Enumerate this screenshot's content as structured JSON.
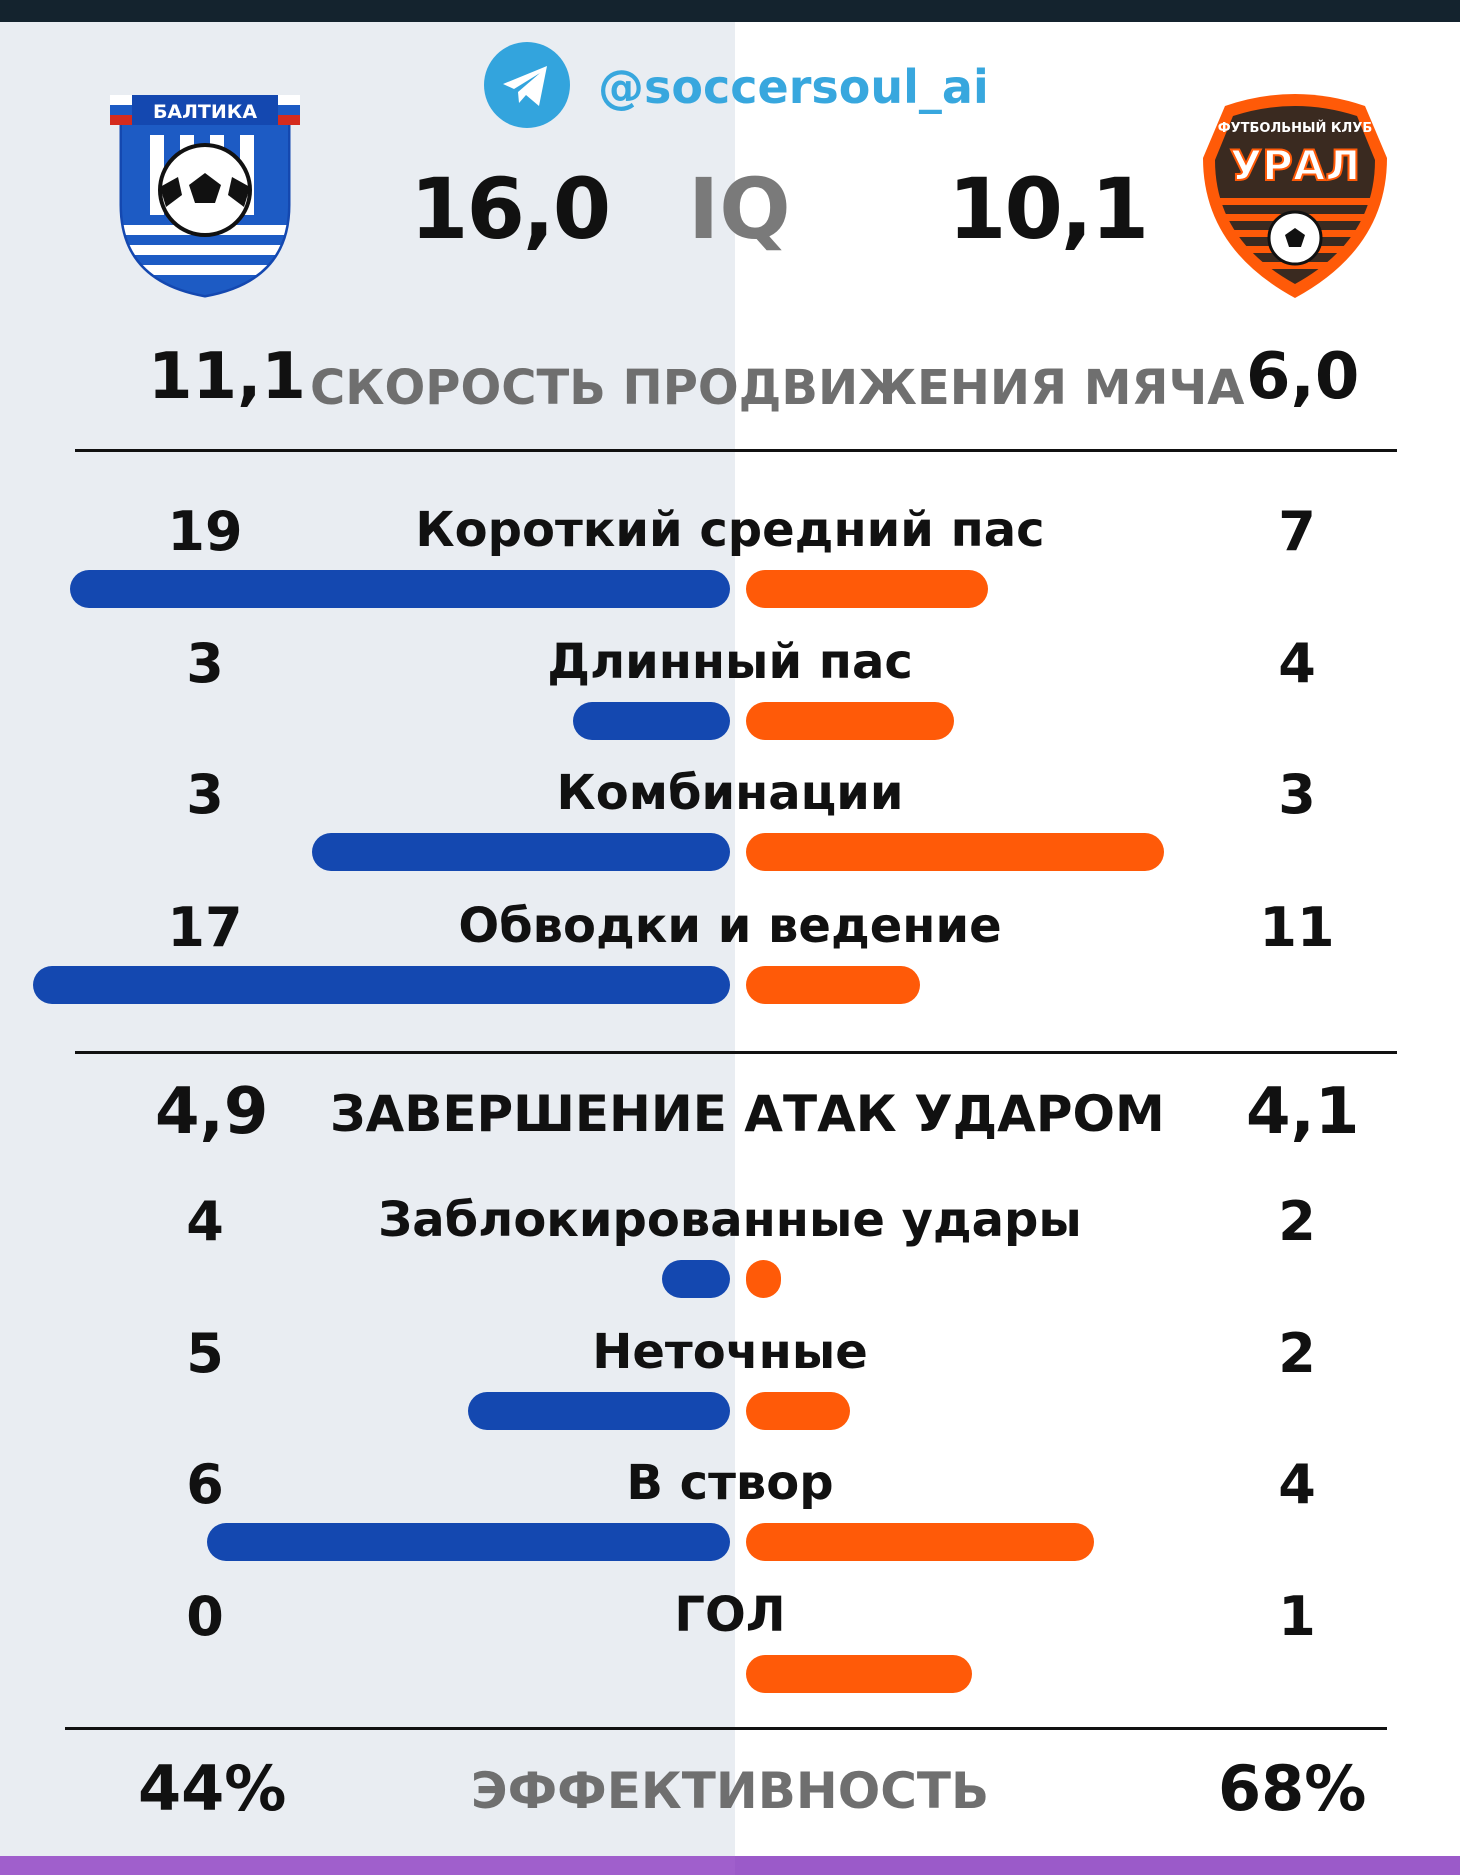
{
  "header": {
    "handle": "@soccersoul_ai",
    "telegram_icon": "telegram-icon"
  },
  "teams": {
    "left": {
      "logo_text": "БАЛТИКА",
      "iq": "16,0",
      "color": "#1448b0"
    },
    "right": {
      "logo_top_text": "ФУТБОЛЬНЫЙ КЛУБ",
      "logo_text": "УРАЛ",
      "iq": "10,1",
      "color": "#ff5a08"
    }
  },
  "iq_label": "IQ",
  "chart_data": {
    "type": "bar",
    "sections": [
      {
        "title": "СКОРОСТЬ ПРОДВИЖЕНИЯ МЯЧА",
        "left_value": "11,1",
        "right_value": "6,0",
        "rows": [
          {
            "label": "Короткий средний пас",
            "left": 19,
            "right": 7
          },
          {
            "label": "Длинный пас",
            "left": 3,
            "right": 4
          },
          {
            "label": "Комбинации",
            "left": 3,
            "right": 3
          },
          {
            "label": "Обводки и ведение",
            "left": 17,
            "right": 11
          }
        ]
      },
      {
        "title": "ЗАВЕРШЕНИЕ АТАК УДАРОМ",
        "left_value": "4,9",
        "right_value": "4,1",
        "rows": [
          {
            "label": "Заблокированные удары",
            "left": 4,
            "right": 2
          },
          {
            "label": "Неточные",
            "left": 5,
            "right": 2
          },
          {
            "label": "В створ",
            "left": 6,
            "right": 4
          },
          {
            "label": "ГОЛ",
            "left": 0,
            "right": 1
          }
        ]
      }
    ],
    "efficiency": {
      "label": "ЭФФЕКТИВНОСТЬ",
      "left": "44%",
      "right": "68%"
    }
  }
}
